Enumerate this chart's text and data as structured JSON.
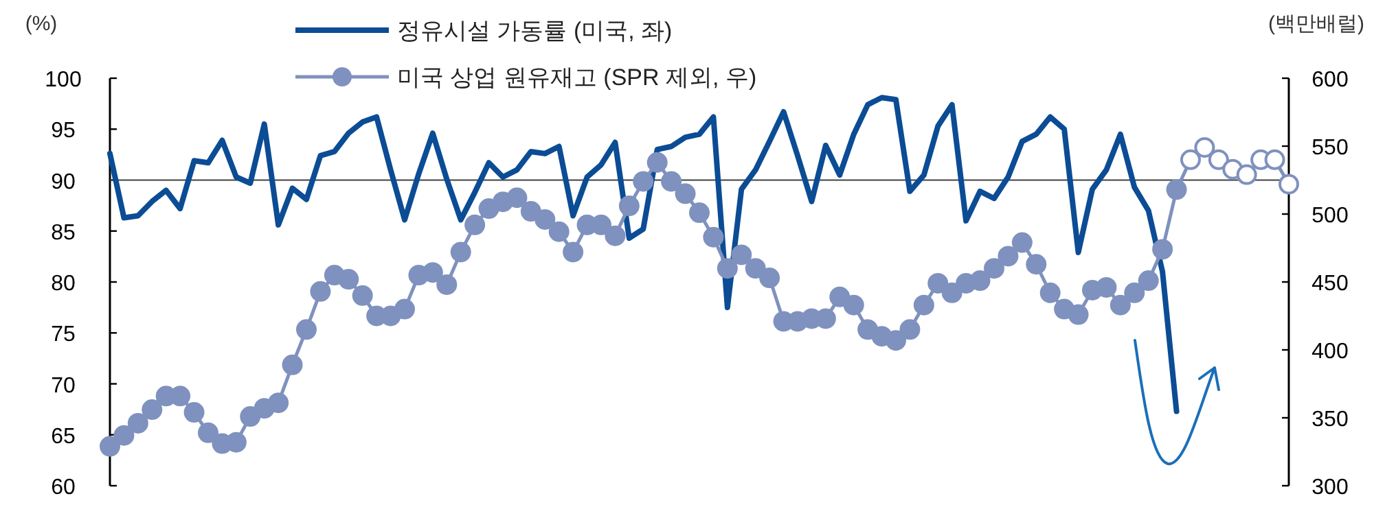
{
  "chart_data": {
    "type": "line",
    "categories": [
      null,
      null,
      null,
      null,
      null,
      null,
      null,
      null,
      null,
      null,
      null,
      null,
      null,
      null,
      null,
      null,
      null,
      null,
      null,
      null,
      null,
      null,
      null,
      null,
      null,
      null,
      null,
      null,
      null,
      null,
      null,
      null,
      null,
      null,
      null,
      null,
      null,
      null,
      null,
      null,
      null,
      null,
      null,
      null,
      null,
      null,
      null,
      null,
      null,
      null,
      null,
      null,
      null,
      null,
      null,
      null,
      null,
      null,
      null,
      null,
      null,
      null,
      null,
      null,
      null,
      null,
      null,
      null,
      null,
      null,
      null,
      null,
      null,
      null,
      null,
      null,
      null,
      null,
      null,
      null,
      null,
      null,
      null,
      null,
      null
    ],
    "series": [
      {
        "name": "정유시설 가동률 (미국, 좌)",
        "color": "#0b4c95",
        "axis": "y",
        "marker": "none",
        "values": [
          92.6,
          86.3,
          86.5,
          87.9,
          89.0,
          87.2,
          91.9,
          91.7,
          93.9,
          90.3,
          89.7,
          95.5,
          85.6,
          89.2,
          88.1,
          92.4,
          92.8,
          94.6,
          95.7,
          96.2,
          91.0,
          86.1,
          90.6,
          94.6,
          90.1,
          86.1,
          88.8,
          91.7,
          90.3,
          91.0,
          92.8,
          92.6,
          93.3,
          86.5,
          90.3,
          91.5,
          93.7,
          84.3,
          85.2,
          93.0,
          93.3,
          94.2,
          94.5,
          96.2,
          77.5,
          89.1,
          91.0,
          93.8,
          96.7,
          92.4,
          87.9,
          93.4,
          90.5,
          94.5,
          97.4,
          98.1,
          97.9,
          88.9,
          90.5,
          95.3,
          97.4,
          86.0,
          88.9,
          88.2,
          90.3,
          93.8,
          94.5,
          96.2,
          95.0,
          82.9,
          89.1,
          91.0,
          94.5,
          89.3,
          87.0,
          81.0,
          67.3,
          null,
          null,
          null,
          null,
          null,
          null,
          null,
          null
        ]
      },
      {
        "name": "미국 상업 원유재고 (SPR 제외, 우)",
        "color": "#7f91be",
        "axis": "y2",
        "marker": "circle",
        "values": [
          329,
          337,
          346,
          356,
          366,
          366,
          354,
          339,
          331,
          332,
          351,
          357,
          361,
          389,
          415,
          443,
          455,
          452,
          440,
          425,
          425,
          430,
          455,
          457,
          448,
          472,
          492,
          504,
          509,
          512,
          502,
          496,
          487,
          472,
          492,
          492,
          484,
          506,
          524,
          538,
          524,
          515,
          501,
          483,
          460,
          470,
          460,
          453,
          421,
          421,
          423,
          423,
          439,
          433,
          415,
          410,
          407,
          415,
          433,
          449,
          442,
          449,
          451,
          460,
          469,
          479,
          463,
          442,
          430,
          426,
          444,
          446,
          433,
          442,
          451,
          474,
          518,
          null,
          null,
          null,
          null,
          null,
          null,
          null,
          null
        ]
      },
      {
        "color": "#7f91be",
        "axis": "y2",
        "marker": "circle-open",
        "values": [
          null,
          null,
          null,
          null,
          null,
          null,
          null,
          null,
          null,
          null,
          null,
          null,
          null,
          null,
          null,
          null,
          null,
          null,
          null,
          null,
          null,
          null,
          null,
          null,
          null,
          null,
          null,
          null,
          null,
          null,
          null,
          null,
          null,
          null,
          null,
          null,
          null,
          null,
          null,
          null,
          null,
          null,
          null,
          null,
          null,
          null,
          null,
          null,
          null,
          null,
          null,
          null,
          null,
          null,
          null,
          null,
          null,
          null,
          null,
          null,
          null,
          null,
          null,
          null,
          null,
          null,
          null,
          null,
          null,
          null,
          null,
          null,
          null,
          null,
          null,
          null,
          518,
          540,
          549,
          540,
          533,
          529,
          540,
          540,
          522
        ]
      }
    ],
    "ylabel": "(%)",
    "y2label": "(백만배럴)",
    "ylim": [
      60,
      100
    ],
    "yticks": [
      60,
      65,
      70,
      75,
      80,
      85,
      90,
      95,
      100
    ],
    "y2lim": [
      300,
      600
    ],
    "y2ticks": [
      300,
      350,
      400,
      450,
      500,
      550,
      600
    ],
    "ref_lines": [
      {
        "axis": "y",
        "value": 90,
        "color": "#404040"
      }
    ],
    "legend": "top"
  }
}
